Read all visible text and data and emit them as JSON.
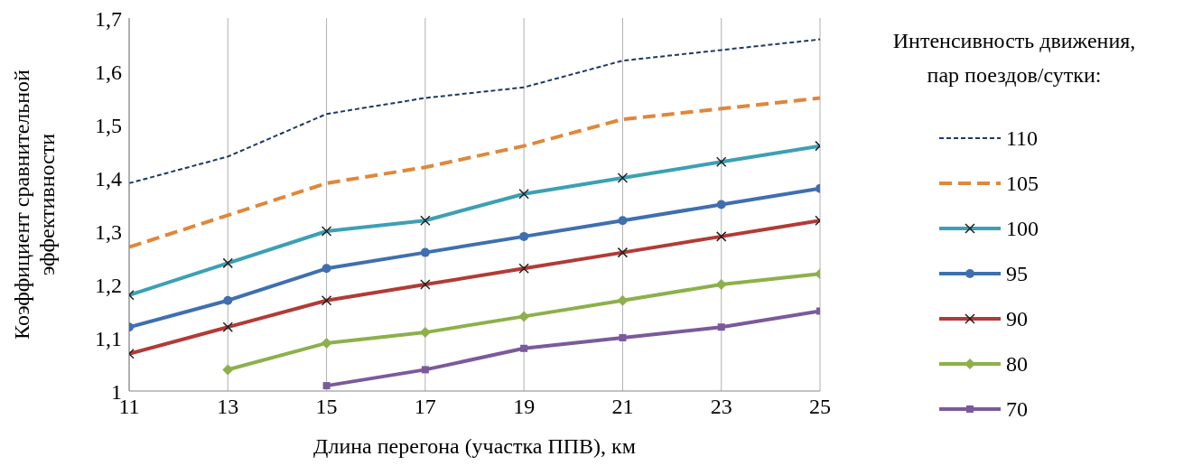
{
  "chart_data": {
    "type": "line",
    "xlabel": "Длина перегона (участка ППВ), км",
    "ylabel": "Коэффициент сравнительной\nэффективности",
    "legend_title": "Интенсивность движения,\nпар поездов/сутки:",
    "x": [
      11,
      13,
      15,
      17,
      19,
      21,
      23,
      25
    ],
    "xlim": [
      11,
      25
    ],
    "xticks": [
      11,
      13,
      15,
      17,
      19,
      21,
      23,
      25
    ],
    "ylim": [
      1,
      1.7
    ],
    "yticks": [
      1,
      {
        "value": 1.1,
        "label": "1,1"
      },
      {
        "value": 1.2,
        "label": "1,2"
      },
      {
        "value": 1.3,
        "label": "1,3"
      },
      {
        "value": 1.4,
        "label": "1,4"
      },
      {
        "value": 1.5,
        "label": "1,5"
      },
      {
        "value": 1.6,
        "label": "1,6"
      },
      {
        "value": 1.7,
        "label": "1,7"
      }
    ],
    "grid": "x",
    "legend": "right",
    "series": [
      {
        "name": "110",
        "color": "#203864",
        "line_style": "dotted",
        "marker": "none",
        "values": [
          1.39,
          1.44,
          1.52,
          1.55,
          1.57,
          1.62,
          1.64,
          1.66
        ]
      },
      {
        "name": "105",
        "color": "#e0873a",
        "line_style": "dashed",
        "marker": "none",
        "values": [
          1.27,
          1.33,
          1.39,
          1.42,
          1.46,
          1.51,
          1.53,
          1.55
        ]
      },
      {
        "name": "100",
        "color": "#3ca0b4",
        "line_style": "solid",
        "marker": "cross",
        "values": [
          1.18,
          1.24,
          1.3,
          1.32,
          1.37,
          1.4,
          1.43,
          1.46
        ]
      },
      {
        "name": "95",
        "color": "#3f6fb0",
        "line_style": "solid",
        "marker": "circle",
        "values": [
          1.12,
          1.17,
          1.23,
          1.26,
          1.29,
          1.32,
          1.35,
          1.38
        ]
      },
      {
        "name": "90",
        "color": "#b33a36",
        "line_style": "solid",
        "marker": "cross",
        "values": [
          1.07,
          1.12,
          1.17,
          1.2,
          1.23,
          1.26,
          1.29,
          1.32
        ]
      },
      {
        "name": "80",
        "color": "#8db04a",
        "line_style": "solid",
        "marker": "diamond",
        "values": [
          null,
          1.04,
          1.09,
          1.11,
          1.14,
          1.17,
          1.2,
          1.22
        ]
      },
      {
        "name": "70",
        "color": "#7b5a9c",
        "line_style": "solid",
        "marker": "square",
        "values": [
          null,
          null,
          1.01,
          1.04,
          1.08,
          1.1,
          1.12,
          1.15
        ]
      }
    ]
  }
}
